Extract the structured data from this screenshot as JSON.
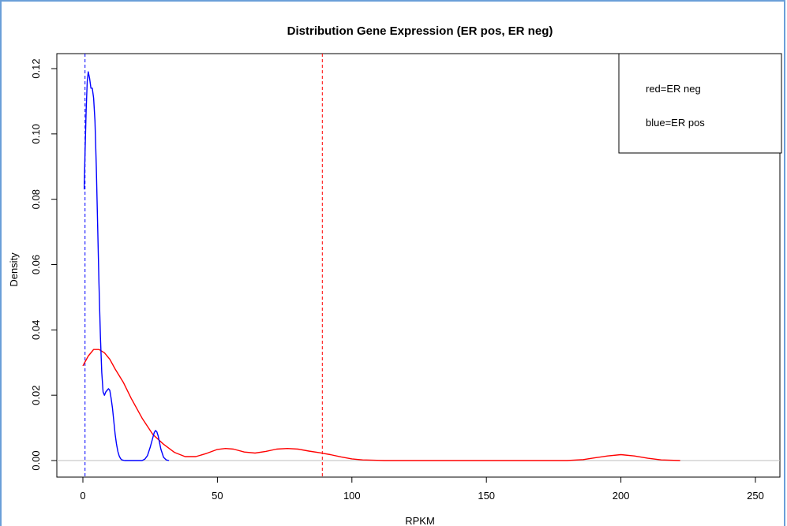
{
  "chart_data": {
    "type": "line",
    "title": "Distribution Gene Expression (ER pos, ER neg)",
    "xlabel": "RPKM",
    "ylabel": "Density",
    "xlim": [
      0,
      250
    ],
    "ylim": [
      0,
      0.12
    ],
    "x_ticks": [
      "0",
      "50",
      "100",
      "150",
      "200",
      "250"
    ],
    "y_ticks": [
      "0.00",
      "0.02",
      "0.04",
      "0.06",
      "0.08",
      "0.10",
      "0.12"
    ],
    "legend": {
      "placement": "top-right",
      "entries": [
        "red=ER neg",
        "blue=ER pos"
      ]
    },
    "baseline": 0,
    "series": [
      {
        "color": "#ff0000",
        "x": [
          0,
          2,
          4,
          6,
          8,
          10,
          12,
          15,
          18,
          22,
          26,
          30,
          34,
          38,
          42,
          46,
          50,
          53,
          56,
          60,
          64,
          68,
          72,
          76,
          80,
          84,
          88,
          92,
          96,
          100,
          104,
          108,
          112,
          120,
          140,
          160,
          180,
          186,
          190,
          195,
          200,
          205,
          210,
          215,
          222
        ],
        "y": [
          0.029,
          0.032,
          0.034,
          0.034,
          0.033,
          0.031,
          0.028,
          0.024,
          0.019,
          0.013,
          0.008,
          0.005,
          0.0025,
          0.0012,
          0.0012,
          0.0022,
          0.0034,
          0.0037,
          0.0035,
          0.0026,
          0.0023,
          0.0028,
          0.0035,
          0.0037,
          0.0035,
          0.0029,
          0.0024,
          0.0018,
          0.0011,
          0.0005,
          0.0002,
          0.0001,
          0,
          0,
          0,
          0,
          0,
          0.0003,
          0.0008,
          0.0014,
          0.0018,
          0.0014,
          0.0007,
          0.0002,
          0
        ]
      },
      {
        "color": "#0000ff",
        "x": [
          0.5,
          0.8,
          1.2,
          1.6,
          2.0,
          2.5,
          3.0,
          3.5,
          4.0,
          4.5,
          5.0,
          5.5,
          6.0,
          6.5,
          7.0,
          7.5,
          8.0,
          8.5,
          9.0,
          9.5,
          10.0,
          10.5,
          11.0,
          11.5,
          12.0,
          12.5,
          13.0,
          13.5,
          14.0,
          14.5,
          15.0,
          15.5,
          16.0,
          17.0,
          18.0,
          20.0,
          22.0,
          23.0,
          24.0,
          25.0,
          26.0,
          26.5,
          27.0,
          27.5,
          28.0,
          28.5,
          29.0,
          30.0,
          31.0,
          32.0
        ],
        "y": [
          0.083,
          0.094,
          0.107,
          0.116,
          0.119,
          0.117,
          0.114,
          0.114,
          0.111,
          0.104,
          0.09,
          0.072,
          0.054,
          0.038,
          0.027,
          0.021,
          0.02,
          0.021,
          0.0215,
          0.022,
          0.0215,
          0.019,
          0.016,
          0.012,
          0.008,
          0.005,
          0.0028,
          0.0014,
          0.0006,
          0.0002,
          0.0001,
          0,
          0,
          0,
          0,
          0,
          0,
          0.0004,
          0.0015,
          0.004,
          0.007,
          0.0085,
          0.0092,
          0.0088,
          0.0075,
          0.0055,
          0.0035,
          0.001,
          0.0002,
          0
        ]
      }
    ],
    "vlines": [
      {
        "x": 0.8,
        "color": "#0000ff",
        "style": "dashed"
      },
      {
        "x": 89,
        "color": "#ff0000",
        "style": "dashed"
      }
    ]
  }
}
